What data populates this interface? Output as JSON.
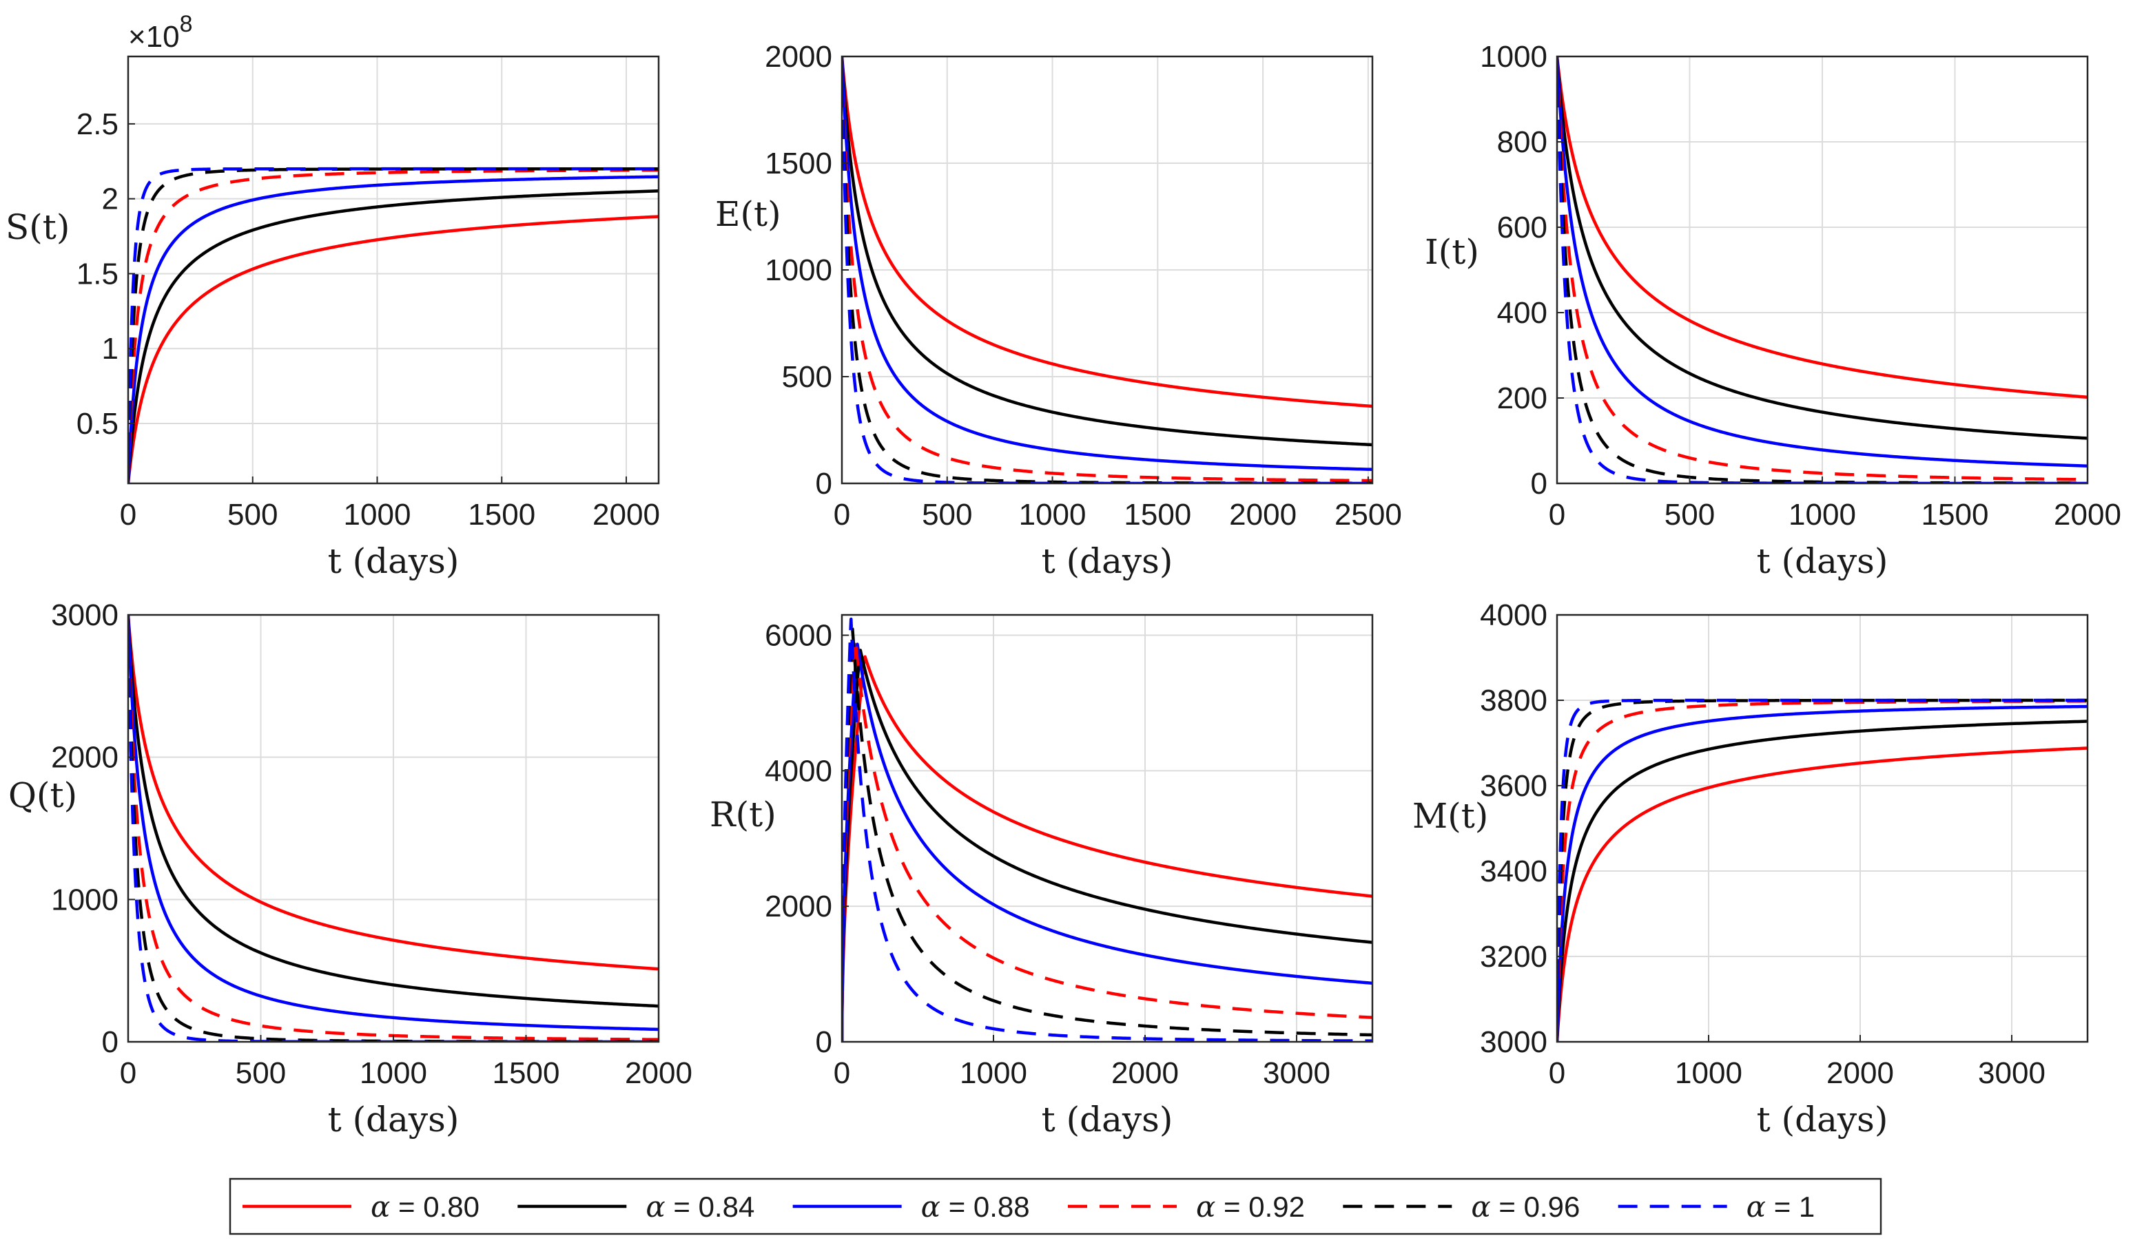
{
  "chart_data": [
    {
      "type": "line",
      "id": "S",
      "ylabel": "S(t)",
      "xlabel": "t (days)",
      "xlim": [
        0,
        2130
      ],
      "ylim": [
        0.1,
        2.95
      ],
      "x_ticks": [
        0,
        500,
        1000,
        1500,
        2000
      ],
      "x_tick_labels": [
        "0",
        "500",
        "1000",
        "1500",
        "2000"
      ],
      "y_ticks": [
        0.5,
        1,
        1.5,
        2,
        2.5
      ],
      "y_tick_labels": [
        "0.5",
        "1",
        "1.5",
        "2",
        "2.5"
      ],
      "y_exponent_base": "×10",
      "y_exponent_power": "8",
      "model": {
        "kind": "rise",
        "y0": 0.1,
        "yinf": 2.2,
        "tau": [
          130,
          85,
          55,
          38,
          26,
          18
        ],
        "tail": [
          0.55,
          0.75,
          1.0,
          1.5,
          2.6,
          4.0
        ]
      }
    },
    {
      "type": "line",
      "id": "E",
      "ylabel": "E(t)",
      "xlabel": "t (days)",
      "xlim": [
        0,
        2520
      ],
      "ylim": [
        0,
        2000
      ],
      "x_ticks": [
        0,
        500,
        1000,
        1500,
        2000,
        2500
      ],
      "x_tick_labels": [
        "0",
        "500",
        "1000",
        "1500",
        "2000",
        "2500"
      ],
      "y_ticks": [
        0,
        500,
        1000,
        1500,
        2000
      ],
      "y_tick_labels": [
        "0",
        "500",
        "1000",
        "1500",
        "2000"
      ],
      "model": {
        "kind": "decay",
        "y0": 2000,
        "yinf": 0,
        "tau": [
          170,
          120,
          85,
          60,
          45,
          35
        ],
        "tail": [
          0.5,
          0.7,
          1.0,
          1.5,
          2.5,
          4.0
        ]
      }
    },
    {
      "type": "line",
      "id": "I",
      "ylabel": "I(t)",
      "xlabel": "t (days)",
      "xlim": [
        0,
        2000
      ],
      "ylim": [
        0,
        1000
      ],
      "x_ticks": [
        0,
        500,
        1000,
        1500,
        2000
      ],
      "x_tick_labels": [
        "0",
        "500",
        "1000",
        "1500",
        "2000"
      ],
      "y_ticks": [
        0,
        200,
        400,
        600,
        800,
        1000
      ],
      "y_tick_labels": [
        "0",
        "200",
        "400",
        "600",
        "800",
        "1000"
      ],
      "model": {
        "kind": "decay",
        "y0": 1000,
        "yinf": 0,
        "tau": [
          170,
          120,
          85,
          60,
          45,
          35
        ],
        "tail": [
          0.5,
          0.7,
          1.0,
          1.5,
          2.5,
          4.0
        ]
      }
    },
    {
      "type": "line",
      "id": "Q",
      "ylabel": "Q(t)",
      "xlabel": "t (days)",
      "xlim": [
        0,
        2000
      ],
      "ylim": [
        0,
        3000
      ],
      "x_ticks": [
        0,
        500,
        1000,
        1500,
        2000
      ],
      "x_tick_labels": [
        "0",
        "500",
        "1000",
        "1500",
        "2000"
      ],
      "y_ticks": [
        0,
        1000,
        2000,
        3000
      ],
      "y_tick_labels": [
        "0",
        "1000",
        "2000",
        "3000"
      ],
      "model": {
        "kind": "decay",
        "y0": 3000,
        "yinf": 0,
        "tau": [
          120,
          85,
          60,
          42,
          32,
          25
        ],
        "tail": [
          0.5,
          0.7,
          1.0,
          1.5,
          2.5,
          4.0
        ]
      }
    },
    {
      "type": "line",
      "id": "R",
      "ylabel": "R(t)",
      "xlabel": "t (days)",
      "xlim": [
        0,
        3500
      ],
      "ylim": [
        0,
        6300
      ],
      "x_ticks": [
        0,
        1000,
        2000,
        3000
      ],
      "x_tick_labels": [
        "0",
        "1000",
        "2000",
        "3000"
      ],
      "y_ticks": [
        0,
        2000,
        4000,
        6000
      ],
      "y_tick_labels": [
        "0",
        "2000",
        "4000",
        "6000"
      ],
      "model": {
        "kind": "peak",
        "peak_t": [
          150,
          120,
          100,
          85,
          70,
          60
        ],
        "peak_v": [
          5700,
          5800,
          5900,
          6000,
          6100,
          6250
        ],
        "tau": [
          800,
          550,
          380,
          260,
          180,
          120
        ],
        "tail": [
          0.4,
          0.55,
          0.75,
          1.1,
          1.6,
          2.4
        ]
      }
    },
    {
      "type": "line",
      "id": "M",
      "ylabel": "M(t)",
      "xlabel": "t (days)",
      "xlim": [
        0,
        3500
      ],
      "ylim": [
        3000,
        4000
      ],
      "x_ticks": [
        0,
        1000,
        2000,
        3000
      ],
      "x_tick_labels": [
        "0",
        "1000",
        "2000",
        "3000"
      ],
      "y_ticks": [
        3000,
        3200,
        3400,
        3600,
        3800,
        4000
      ],
      "y_tick_labels": [
        "3000",
        "3200",
        "3400",
        "3600",
        "3800",
        "4000"
      ],
      "model": {
        "kind": "rise",
        "y0": 3000,
        "yinf": 3800,
        "tau": [
          140,
          95,
          65,
          45,
          32,
          24
        ],
        "tail": [
          0.5,
          0.7,
          1.0,
          1.5,
          2.5,
          4.0
        ]
      }
    }
  ],
  "series": [
    {
      "name": "α = 0.80",
      "alpha_symbol": "α",
      "alpha_value": " = 0.80",
      "color": "#ff0000",
      "dash": "solid"
    },
    {
      "name": "α = 0.84",
      "alpha_symbol": "α",
      "alpha_value": " = 0.84",
      "color": "#000000",
      "dash": "solid"
    },
    {
      "name": "α = 0.88",
      "alpha_symbol": "α",
      "alpha_value": " = 0.88",
      "color": "#0000ff",
      "dash": "solid"
    },
    {
      "name": "α = 0.92",
      "alpha_symbol": "α",
      "alpha_value": " = 0.92",
      "color": "#ff0000",
      "dash": "dashed"
    },
    {
      "name": "α = 0.96",
      "alpha_symbol": "α",
      "alpha_value": " = 0.96",
      "color": "#000000",
      "dash": "dashed"
    },
    {
      "name": "α = 1",
      "alpha_symbol": "α",
      "alpha_value": " = 1",
      "color": "#0000ff",
      "dash": "dashed"
    }
  ],
  "legend": {
    "placement": "bottom"
  }
}
